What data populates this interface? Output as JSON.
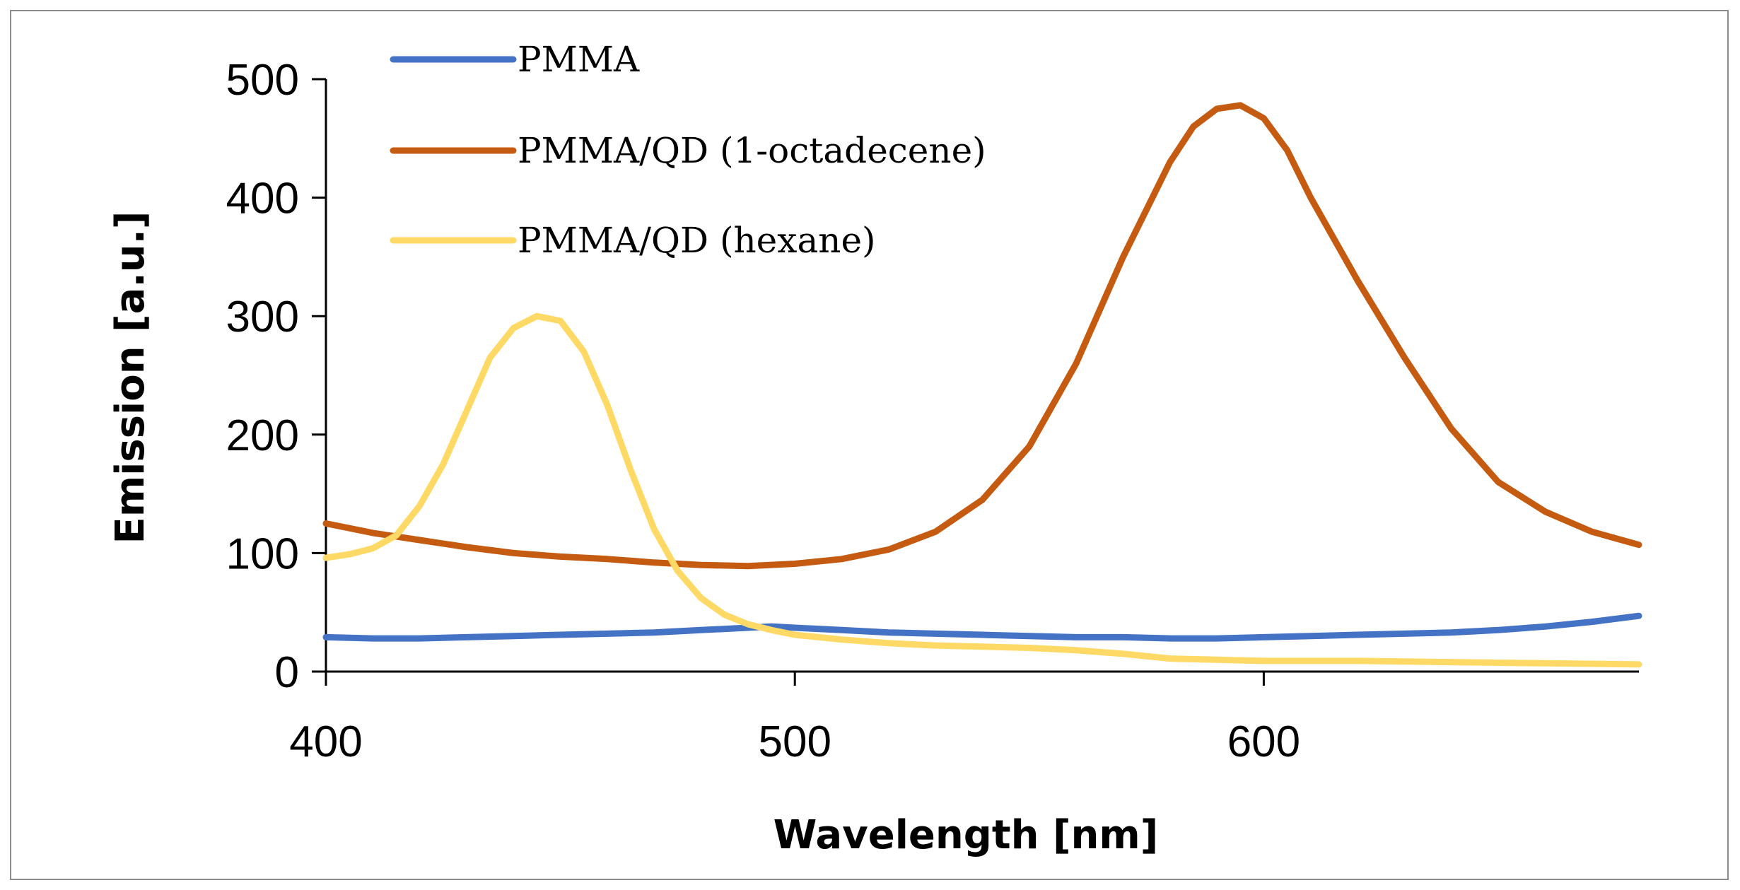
{
  "chart_data": {
    "type": "line",
    "xlabel": "Wavelength [nm]",
    "ylabel": "Emission [a.u.]",
    "xlim": [
      400,
      680
    ],
    "ylim": [
      0,
      500
    ],
    "xticks": [
      400,
      500,
      600
    ],
    "yticks": [
      0,
      100,
      200,
      300,
      400,
      500
    ],
    "grid": false,
    "legend_position": "top-center",
    "series": [
      {
        "name": "PMMA",
        "color": "#4472C4",
        "x": [
          400,
          410,
          420,
          430,
          440,
          450,
          460,
          470,
          480,
          490,
          495,
          500,
          510,
          520,
          530,
          540,
          550,
          560,
          570,
          580,
          590,
          600,
          610,
          620,
          630,
          640,
          650,
          660,
          670,
          680
        ],
        "y": [
          29,
          28,
          28,
          29,
          30,
          31,
          32,
          33,
          35,
          37,
          38,
          37,
          35,
          33,
          32,
          31,
          30,
          29,
          29,
          28,
          28,
          29,
          30,
          31,
          32,
          33,
          35,
          38,
          42,
          47
        ]
      },
      {
        "name": "PMMA/QD (1-octadecene)",
        "color": "#C55A11",
        "x": [
          400,
          410,
          420,
          430,
          440,
          450,
          460,
          470,
          480,
          490,
          500,
          510,
          520,
          530,
          540,
          550,
          560,
          570,
          580,
          585,
          590,
          595,
          600,
          605,
          610,
          620,
          630,
          640,
          650,
          660,
          670,
          680
        ],
        "y": [
          125,
          117,
          111,
          105,
          100,
          97,
          95,
          92,
          90,
          89,
          91,
          95,
          103,
          118,
          145,
          190,
          260,
          350,
          430,
          460,
          475,
          478,
          467,
          440,
          400,
          330,
          265,
          205,
          160,
          135,
          118,
          107
        ]
      },
      {
        "name": "PMMA/QD (hexane)",
        "color": "#FFD966",
        "x": [
          400,
          405,
          410,
          415,
          420,
          425,
          430,
          435,
          440,
          445,
          450,
          455,
          460,
          465,
          470,
          475,
          480,
          485,
          490,
          495,
          500,
          510,
          520,
          530,
          540,
          550,
          560,
          570,
          580,
          600,
          620,
          640,
          660,
          680
        ],
        "y": [
          96,
          99,
          104,
          115,
          140,
          175,
          220,
          265,
          290,
          300,
          296,
          270,
          225,
          170,
          120,
          85,
          62,
          48,
          40,
          35,
          31,
          27,
          24,
          22,
          21,
          20,
          18,
          15,
          11,
          9,
          9,
          8,
          7,
          6
        ]
      }
    ]
  }
}
